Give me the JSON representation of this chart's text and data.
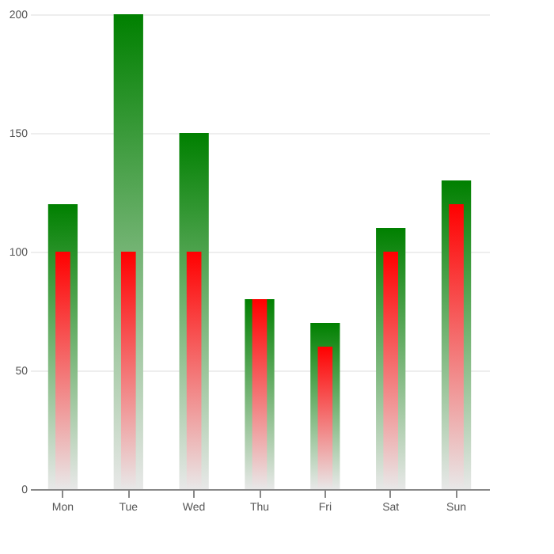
{
  "chart_data": {
    "type": "bar",
    "categories": [
      "Mon",
      "Tue",
      "Wed",
      "Thu",
      "Fri",
      "Sat",
      "Sun"
    ],
    "series": [
      {
        "color": "#008000",
        "values": [
          120,
          200,
          150,
          80,
          70,
          110,
          130
        ]
      },
      {
        "color": "#ff0000",
        "values": [
          100,
          100,
          100,
          80,
          60,
          100,
          120
        ]
      }
    ],
    "ylim": [
      0,
      200
    ],
    "yticks": [
      0,
      50,
      100,
      150,
      200
    ],
    "grid": "y"
  }
}
